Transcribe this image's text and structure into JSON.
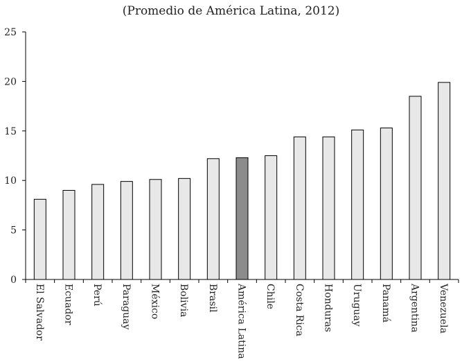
{
  "chart_data": {
    "type": "bar",
    "title": "(Promedio de América Latina, 2012)",
    "xlabel": "",
    "ylabel": "",
    "ylim": [
      0,
      25
    ],
    "yticks": [
      "0",
      "5",
      "10",
      "15",
      "20",
      "25"
    ],
    "grid": false,
    "categories": [
      "El Salvador",
      "Ecuador",
      "Perú",
      "Paraguay",
      "México",
      "Bolivia",
      "Brasil",
      "América Latina",
      "Chile",
      "Costa Rica",
      "Honduras",
      "Uruguay",
      "Panamá",
      "Argentina",
      "Venezuela"
    ],
    "values": [
      8.1,
      9.0,
      9.6,
      9.9,
      10.1,
      10.2,
      12.2,
      12.3,
      12.5,
      14.4,
      14.4,
      15.1,
      15.3,
      18.5,
      19.9
    ],
    "highlight_category": "América Latina",
    "colors": {
      "bar": "#e8e8e8",
      "highlight": "#8c8c8c",
      "stroke": "#000000"
    }
  }
}
